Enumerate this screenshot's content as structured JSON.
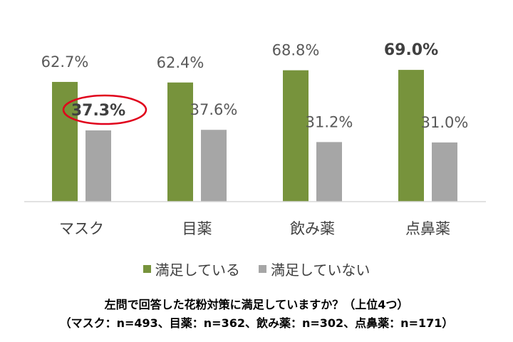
{
  "chart_data": {
    "type": "bar",
    "categories": [
      "マスク",
      "目薬",
      "飲み薬",
      "点鼻薬"
    ],
    "series": [
      {
        "name": "満足している",
        "values": [
          62.7,
          62.4,
          68.8,
          69.0
        ],
        "labels": [
          "62.7%",
          "62.4%",
          "68.8%",
          "69.0%"
        ],
        "color": "#77933C"
      },
      {
        "name": "満足していない",
        "values": [
          37.3,
          37.6,
          31.2,
          31.0
        ],
        "labels": [
          "37.3%",
          "37.6%",
          "31.2%",
          "31.0%"
        ],
        "color": "#A6A6A6"
      }
    ],
    "emphasized_labels": [
      {
        "series": 0,
        "index": 3
      },
      {
        "series": 1,
        "index": 0,
        "circled": true,
        "circle_color": "#E0001B"
      }
    ],
    "axis_line_color": "#D9D9D9",
    "legend_position": "bottom",
    "grid": false
  },
  "caption": {
    "line1": "左問で回答した花粉対策に満足していますか？（上位4つ）",
    "line2": "（マスク：n=493、目薬：n=362、飲み薬：n=302、点鼻薬：n=171）"
  }
}
